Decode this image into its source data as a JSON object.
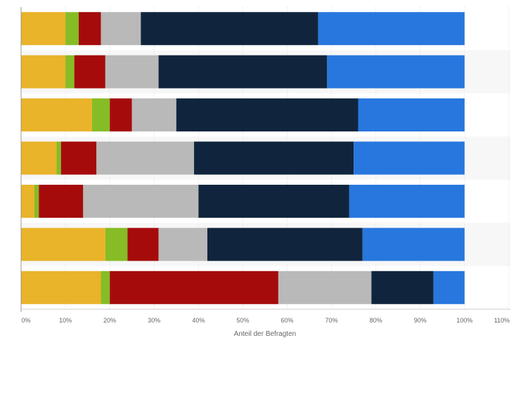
{
  "chart_data": {
    "type": "bar",
    "orientation": "horizontal",
    "stacked": true,
    "title": "",
    "xlabel": "Anteil der Befragten",
    "ylabel": "",
    "xlim": [
      0,
      110
    ],
    "x_tick_labels": [
      "0%",
      "10%",
      "20%",
      "30%",
      "40%",
      "50%",
      "60%",
      "70%",
      "80%",
      "90%",
      "100%",
      "110%"
    ],
    "grid": true,
    "legend": "none",
    "categories": [
      "",
      "",
      "",
      "",
      "",
      "",
      ""
    ],
    "series": [
      {
        "color": "#e9b32a",
        "values": [
          10,
          10,
          16,
          8,
          3,
          19,
          18
        ]
      },
      {
        "color": "#86bc25",
        "values": [
          3,
          2,
          4,
          1,
          1,
          5,
          2
        ]
      },
      {
        "color": "#a50b0b",
        "values": [
          5,
          7,
          5,
          8,
          10,
          7,
          38
        ]
      },
      {
        "color": "#b9b9b9",
        "values": [
          9,
          12,
          10,
          22,
          26,
          11,
          21
        ]
      },
      {
        "color": "#10253d",
        "values": [
          40,
          38,
          41,
          36,
          34,
          35,
          14
        ]
      },
      {
        "color": "#2877de",
        "values": [
          33,
          31,
          24,
          25,
          26,
          23,
          7
        ]
      }
    ]
  }
}
